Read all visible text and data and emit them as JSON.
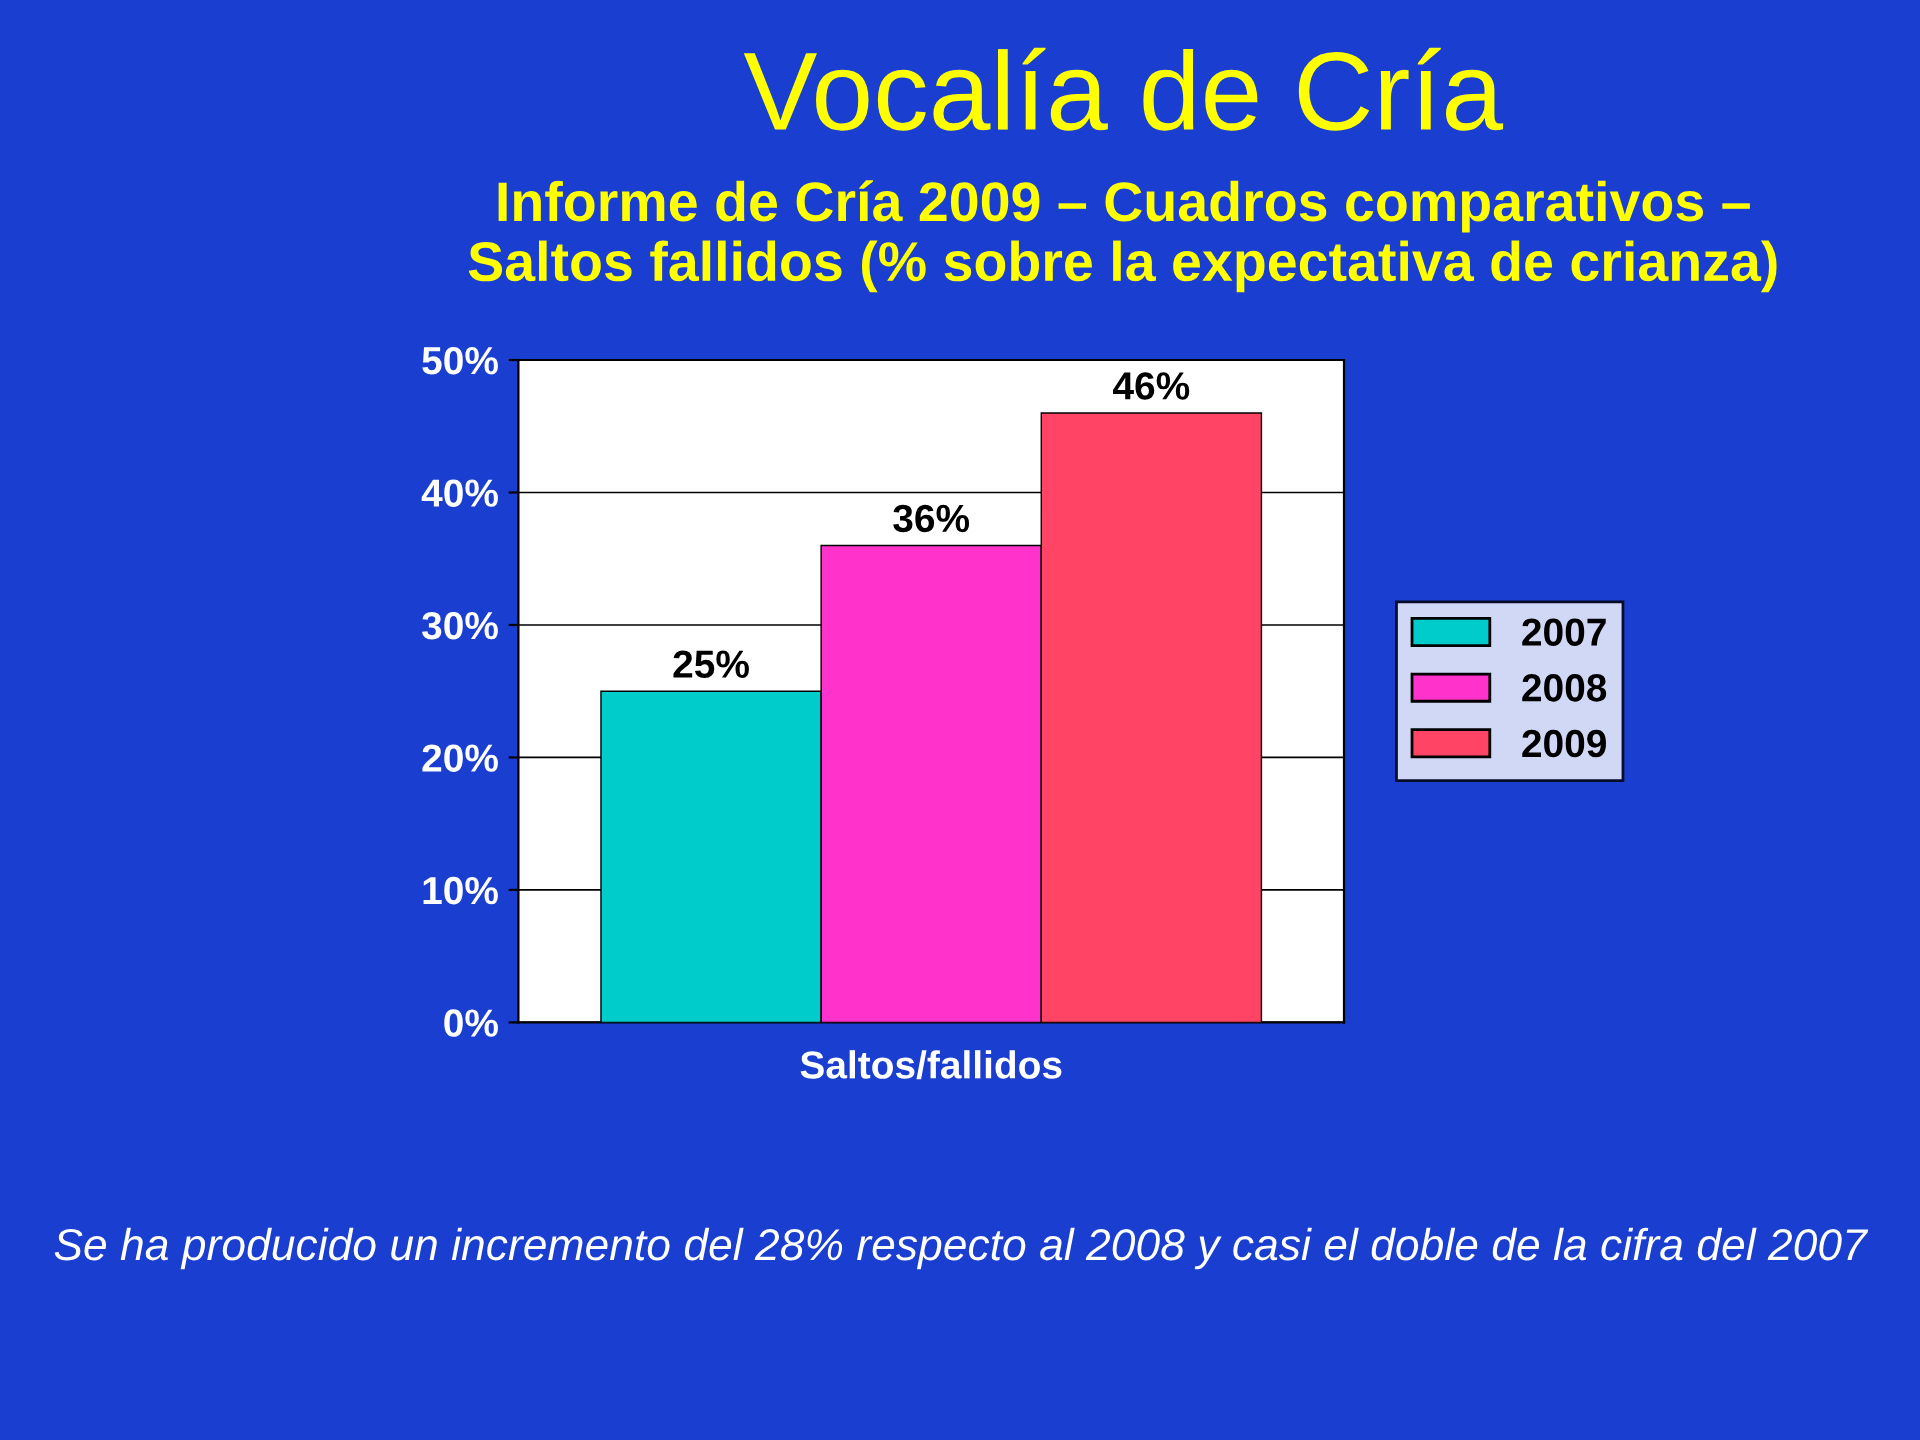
{
  "chart_data": {
    "type": "bar",
    "title": "Vocalía de Cría",
    "subtitle": "Informe de Cría 2009 – Cuadros comparativos –\nSaltos fallidos (% sobre la expectativa de crianza)",
    "categories": [
      "Saltos/fallidos"
    ],
    "series": [
      {
        "name": "2007",
        "color": "#00cccc",
        "values": [
          25
        ],
        "value_labels": [
          "25%"
        ]
      },
      {
        "name": "2008",
        "color": "#ff33cc",
        "values": [
          36
        ],
        "value_labels": [
          "36%"
        ]
      },
      {
        "name": "2009",
        "color": "#ff4466",
        "values": [
          46
        ],
        "value_labels": [
          "46%"
        ]
      }
    ],
    "ylim": [
      0,
      50
    ],
    "yticks": [
      {
        "value": 0,
        "label": "0%"
      },
      {
        "value": 10,
        "label": "10%"
      },
      {
        "value": 20,
        "label": "20%"
      },
      {
        "value": 30,
        "label": "30%"
      },
      {
        "value": 40,
        "label": "40%"
      },
      {
        "value": 50,
        "label": "50%"
      }
    ],
    "grid": "y",
    "legend": "right",
    "annotations": [
      "Se ha producido un incremento del 28% respecto al 2008 y casi el doble de la cifra del 2007"
    ]
  }
}
